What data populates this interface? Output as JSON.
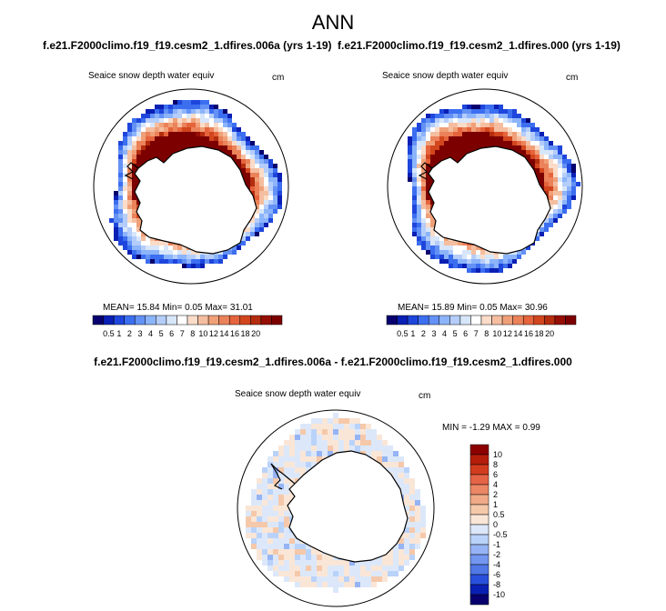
{
  "page": {
    "title": "ANN"
  },
  "colors": {
    "land": "#ffffff",
    "coast": "#000000",
    "abs_palette": [
      "#08006e",
      "#0a1fb4",
      "#1e46dc",
      "#3c6ef0",
      "#6491f5",
      "#8cb4fa",
      "#b4cdfa",
      "#d7e6fa",
      "#ffffff",
      "#fadcc8",
      "#f5bea0",
      "#f0a078",
      "#eb825a",
      "#e6643c",
      "#d2461e",
      "#b42d0f",
      "#960f05",
      "#7d0000"
    ],
    "diff_palette": [
      "#08006e",
      "#0a1fb4",
      "#2850dc",
      "#5078e6",
      "#7396f0",
      "#96b4f5",
      "#b9d2fa",
      "#dce8fa",
      "#fae6d7",
      "#f5c8aa",
      "#f0aa87",
      "#eb8764",
      "#e66446",
      "#d23c1e",
      "#b41e0a",
      "#8c0000"
    ]
  },
  "panels": [
    {
      "case_title": "f.e21.F2000climo.f19_f19.cesm2_1.dfires.006a (yrs 1-19)",
      "variable": "Seaice snow depth water equiv",
      "units": "cm",
      "stats": {
        "mean_label": "MEAN=",
        "mean": "15.84",
        "min_label": "Min=",
        "min": "0.05",
        "max_label": "Max=",
        "max": "31.01"
      }
    },
    {
      "case_title": "f.e21.F2000climo.f19_f19.cesm2_1.dfires.000 (yrs 1-19)",
      "variable": "Seaice snow depth water equiv",
      "units": "cm",
      "stats": {
        "mean_label": "MEAN=",
        "mean": "15.89",
        "min_label": "Min=",
        "min": "0.05",
        "max_label": "Max=",
        "max": "30.96"
      }
    },
    {
      "case_title": "f.e21.F2000climo.f19_f19.cesm2_1.dfires.006a - f.e21.F2000climo.f19_f19.cesm2_1.dfires.000",
      "variable": "Seaice snow depth water equiv",
      "units": "cm",
      "stats": {
        "min_label": "MIN =",
        "min": "-1.29",
        "max_label": "MAX =",
        "max": "0.99"
      }
    }
  ],
  "chart_data": [
    {
      "type": "heatmap",
      "projection": "south-polar-stereographic",
      "title": "Seaice snow depth water equiv",
      "units": "cm",
      "mean": 15.84,
      "min": 0.05,
      "max": 31.01,
      "colorbar": {
        "orientation": "horizontal",
        "levels": [
          "0.5",
          "1",
          "2",
          "3",
          "4",
          "5",
          "6",
          "7",
          "8",
          "10",
          "12",
          "14",
          "16",
          "18",
          "20"
        ]
      },
      "field": "high (>20 cm) near the Antarctic coast, decreasing to 0.5-4 cm at the outer sea-ice edge"
    },
    {
      "type": "heatmap",
      "projection": "south-polar-stereographic",
      "title": "Seaice snow depth water equiv",
      "units": "cm",
      "mean": 15.89,
      "min": 0.05,
      "max": 30.96,
      "colorbar": {
        "orientation": "horizontal",
        "levels": [
          "0.5",
          "1",
          "2",
          "3",
          "4",
          "5",
          "6",
          "7",
          "8",
          "10",
          "12",
          "14",
          "16",
          "18",
          "20"
        ]
      },
      "field": "high (>20 cm) near the Antarctic coast, decreasing to 0.5-4 cm at the outer sea-ice edge"
    },
    {
      "type": "heatmap",
      "projection": "south-polar-stereographic",
      "title": "Seaice snow depth water equiv",
      "units": "cm",
      "min": -1.29,
      "max": 0.99,
      "colorbar": {
        "orientation": "vertical",
        "levels": [
          "10",
          "8",
          "6",
          "4",
          "2",
          "1",
          "0.5",
          "0",
          "-0.5",
          "-1",
          "-2",
          "-4",
          "-6",
          "-8",
          "-10"
        ]
      },
      "field": "small differences between -1 and 1 cm, mixed positive and negative"
    }
  ]
}
